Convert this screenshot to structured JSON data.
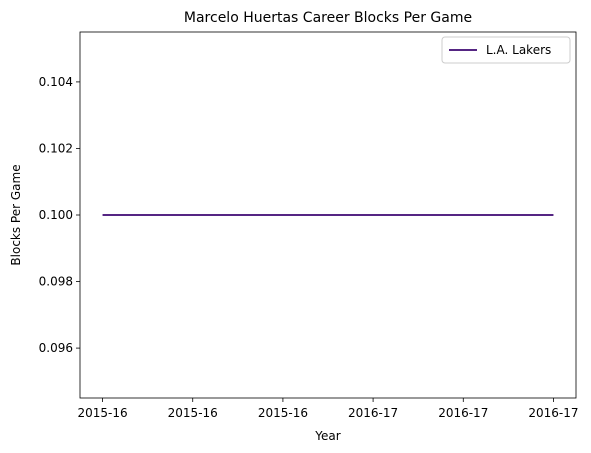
{
  "chart_data": {
    "type": "line",
    "title": "Marcelo Huertas Career Blocks Per Game",
    "xlabel": "Year",
    "ylabel": "Blocks Per Game",
    "x_tick_labels": [
      "2015-16",
      "2015-16",
      "2015-16",
      "2016-17",
      "2016-17",
      "2016-17"
    ],
    "y_ticks": [
      0.096,
      0.098,
      0.1,
      0.102,
      0.104
    ],
    "ylim": [
      0.0945,
      0.1055
    ],
    "grid": false,
    "legend_position": "top-right",
    "series": [
      {
        "name": "L.A. Lakers",
        "color": "#552583",
        "x": [
          "2015-16",
          "2016-17"
        ],
        "values": [
          0.1,
          0.1
        ]
      }
    ]
  }
}
